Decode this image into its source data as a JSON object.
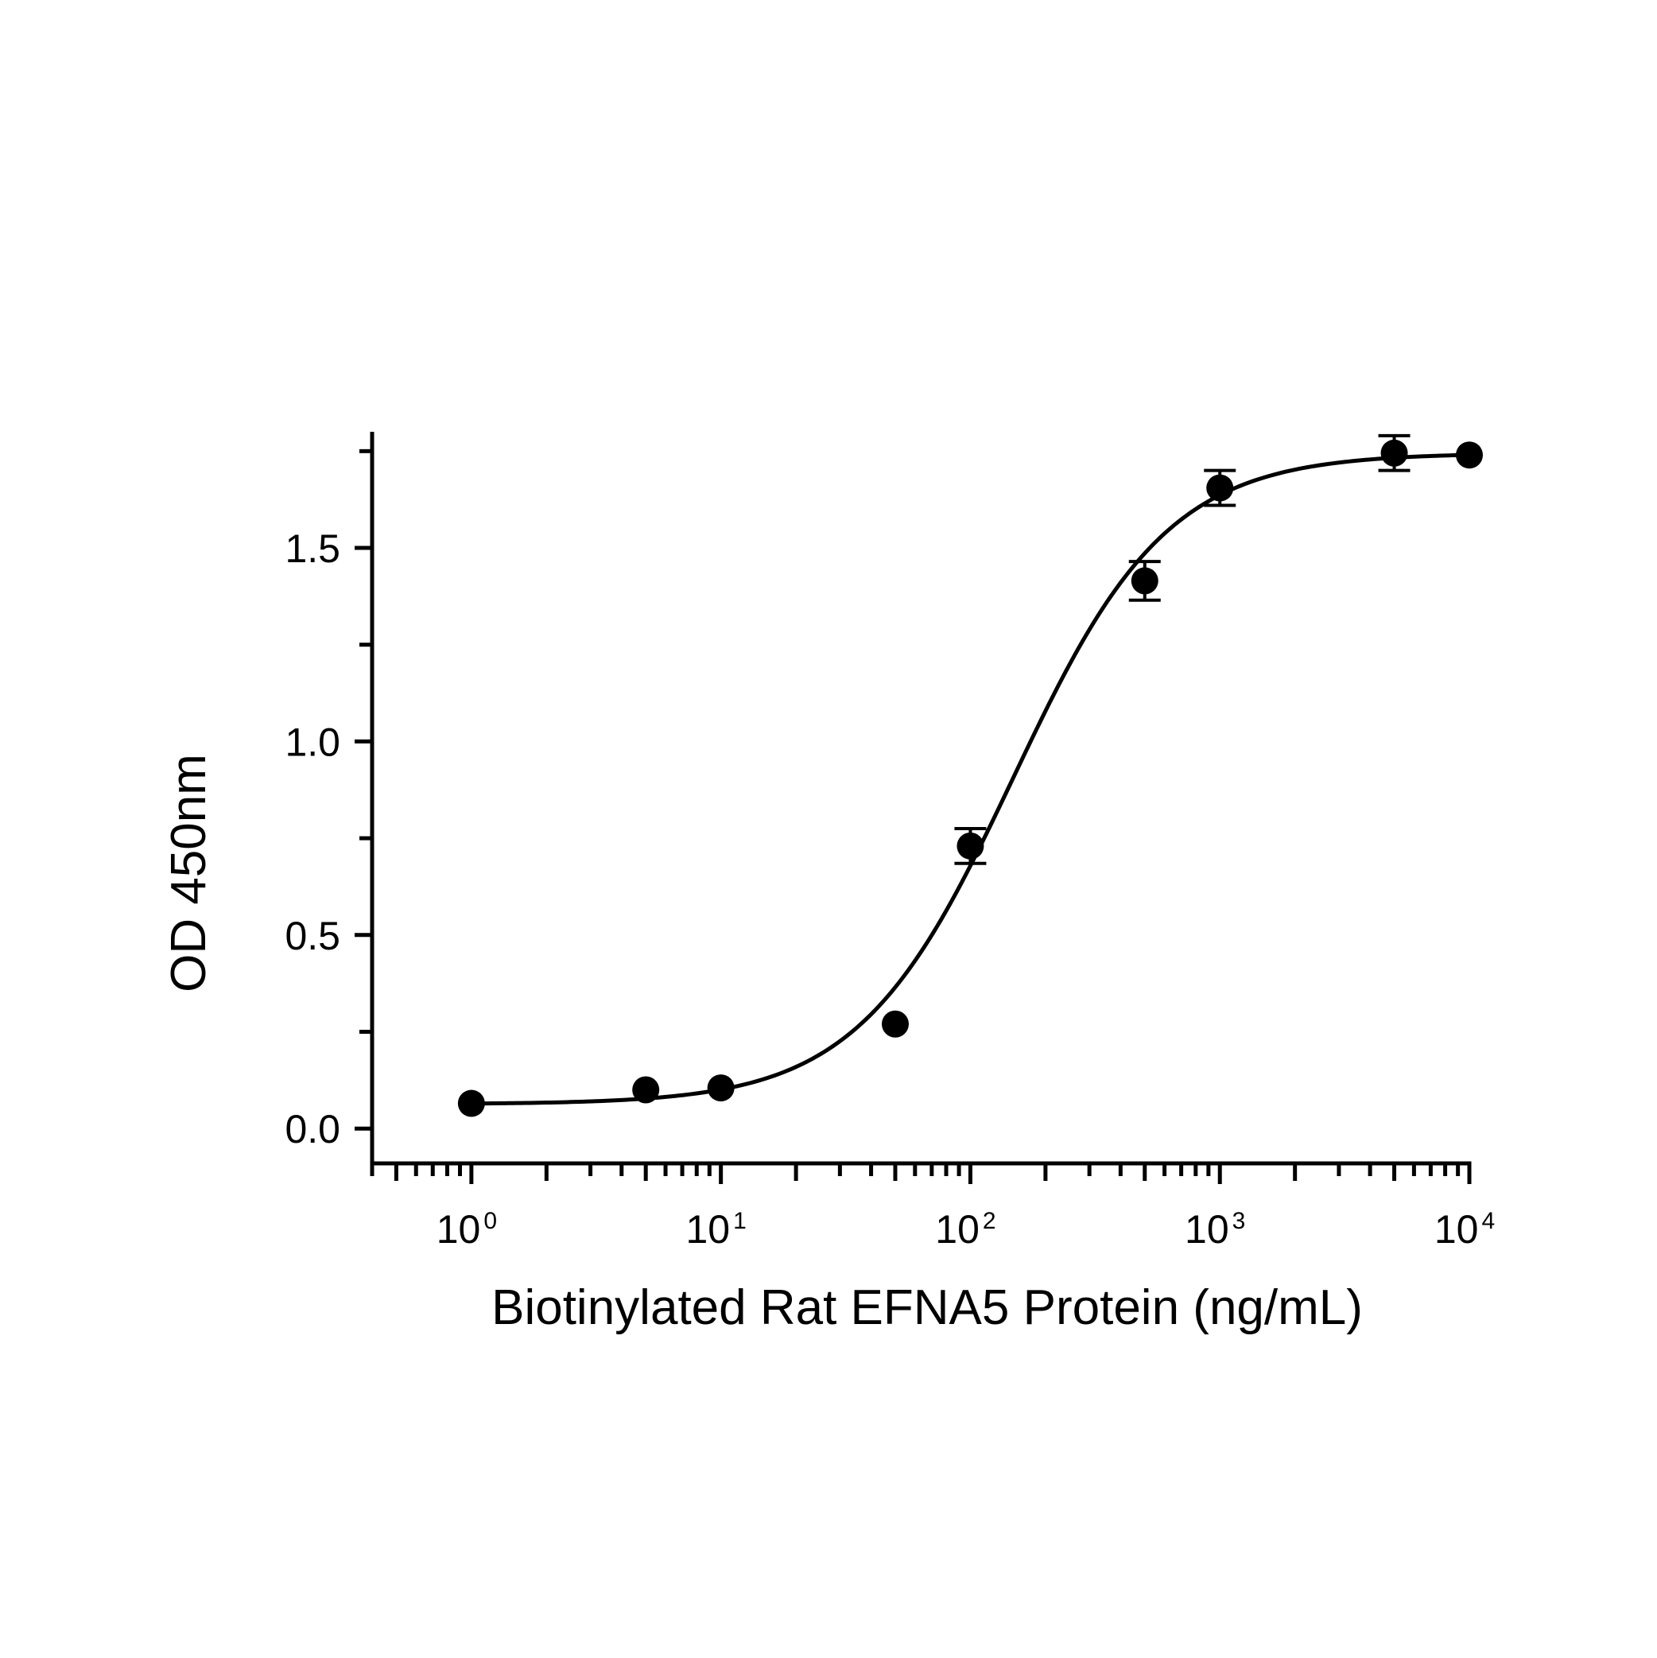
{
  "chart_data": {
    "type": "scatter",
    "title": "",
    "xlabel": "Biotinylated Rat EFNA5 Protein (ng/mL)",
    "ylabel": "OD 450nm",
    "xscale": "log",
    "xlim": [
      0.4,
      10000
    ],
    "ylim": [
      -0.09,
      1.8
    ],
    "x_ticks": [
      {
        "base": "10",
        "exp": "0",
        "value": 1
      },
      {
        "base": "10",
        "exp": "1",
        "value": 10
      },
      {
        "base": "10",
        "exp": "2",
        "value": 100
      },
      {
        "base": "10",
        "exp": "3",
        "value": 1000
      },
      {
        "base": "10",
        "exp": "4",
        "value": 10000
      }
    ],
    "y_ticks": [
      {
        "label": "0.0",
        "value": 0.0
      },
      {
        "label": "0.5",
        "value": 0.5
      },
      {
        "label": "1.0",
        "value": 1.0
      },
      {
        "label": "1.5",
        "value": 1.5
      }
    ],
    "y_minor_ticks": [
      0.25,
      0.75,
      1.25,
      1.75
    ],
    "grid": false,
    "legend": "none",
    "series": [
      {
        "points": [
          {
            "x": 1,
            "y": 0.065,
            "err": 0.0
          },
          {
            "x": 5,
            "y": 0.1,
            "err": 0.0
          },
          {
            "x": 10,
            "y": 0.105,
            "err": 0.0
          },
          {
            "x": 50,
            "y": 0.27,
            "err": 0.0
          },
          {
            "x": 100,
            "y": 0.73,
            "err": 0.045
          },
          {
            "x": 500,
            "y": 1.415,
            "err": 0.05
          },
          {
            "x": 1000,
            "y": 1.655,
            "err": 0.045
          },
          {
            "x": 5000,
            "y": 1.745,
            "err": 0.045
          },
          {
            "x": 10000,
            "y": 1.74,
            "err": 0.0
          }
        ],
        "fit": {
          "model": "4PL",
          "bottom": 0.063,
          "top": 1.745,
          "ec50": 148,
          "hill": 1.4
        }
      }
    ],
    "color": "#000000"
  }
}
